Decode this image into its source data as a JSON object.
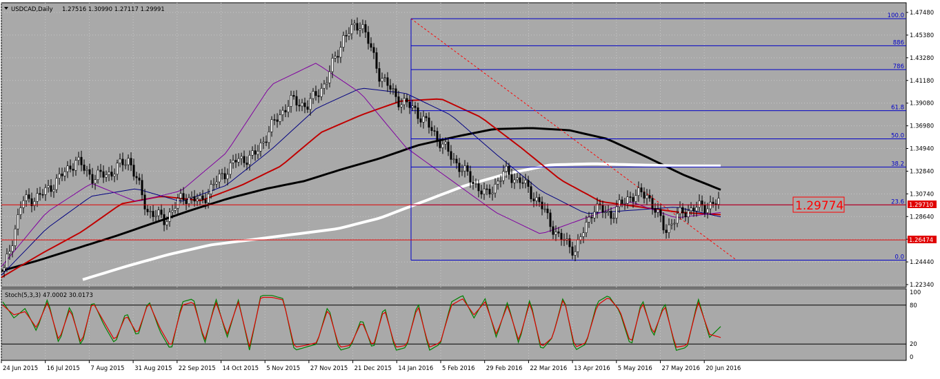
{
  "window": {
    "symbol_header": "USDCAD,Daily",
    "ohlc": "1.27516 1.30990 1.27117 1.29991"
  },
  "indicator_header": "Stoch(5,3,3) 47.0002 30.0173",
  "price_labels": {
    "big": "1.29774",
    "red_a": "1.29710",
    "red_b": "1.26474"
  },
  "chart_data": [
    {
      "type": "line",
      "title": "",
      "ylim": [
        1.2234,
        1.4748
      ],
      "grid": true,
      "y_ticks": [
        "1.47480",
        "1.45380",
        "1.43280",
        "1.41180",
        "1.39080",
        "1.36980",
        "1.34940",
        "1.32840",
        "1.30740",
        "1.28640",
        "1.26540",
        "1.24440",
        "1.22340"
      ],
      "x_ticks": [
        "24 Jun 2015",
        "16 Jul 2015",
        "7 Aug 2015",
        "31 Aug 2015",
        "22 Sep 2015",
        "14 Oct 2015",
        "5 Nov 2015",
        "27 Nov 2015",
        "21 Dec 2015",
        "14 Jan 2016",
        "5 Feb 2016",
        "29 Feb 2016",
        "22 Mar 2016",
        "13 Apr 2016",
        "5 May 2016",
        "27 May 2016",
        "20 Jun 2016"
      ],
      "candle_anchor_closes": [
        1.236,
        1.3,
        1.305,
        1.32,
        1.338,
        1.322,
        1.327,
        1.34,
        1.292,
        1.283,
        1.305,
        1.3,
        1.321,
        1.338,
        1.342,
        1.37,
        1.393,
        1.389,
        1.41,
        1.452,
        1.466,
        1.418,
        1.395,
        1.385,
        1.365,
        1.342,
        1.323,
        1.305,
        1.327,
        1.318,
        1.298,
        1.268,
        1.255,
        1.295,
        1.288,
        1.305,
        1.307,
        1.274,
        1.291,
        1.295,
        1.299
      ],
      "fibonacci": {
        "high": 1.469,
        "low": 1.246,
        "levels": [
          {
            "label": "100.0",
            "value": 1.469
          },
          {
            "label": "886",
            "value": 1.444
          },
          {
            "label": "786",
            "value": 1.422
          },
          {
            "label": "61.8",
            "value": 1.384
          },
          {
            "label": "50.0",
            "value": 1.358
          },
          {
            "label": "38.2",
            "value": 1.332
          },
          {
            "label": "23.6",
            "value": 1.297
          },
          {
            "label": "0.0",
            "value": 1.246
          }
        ]
      },
      "horizontal_lines": [
        {
          "value": 1.2971,
          "color": "#e00000"
        },
        {
          "value": 1.2647,
          "color": "#e00000"
        }
      ],
      "moving_averages": [
        {
          "color": "#000000",
          "values": [
            1.236,
            1.246,
            1.257,
            1.268,
            1.28,
            1.292,
            1.303,
            1.312,
            1.319,
            1.33,
            1.34,
            1.352,
            1.36,
            1.367,
            1.368,
            1.366,
            1.358,
            1.342,
            1.325,
            1.311
          ]
        },
        {
          "color": "#ffffff",
          "values": [
            1.228,
            1.24,
            1.251,
            1.26,
            1.265,
            1.27,
            1.275,
            1.285,
            1.3,
            1.315,
            1.326,
            1.334,
            1.335,
            1.334,
            1.333,
            1.333
          ]
        },
        {
          "color": "#c00000",
          "values": [
            1.23,
            1.252,
            1.272,
            1.298,
            1.305,
            1.301,
            1.315,
            1.333,
            1.364,
            1.38,
            1.393,
            1.395,
            1.378,
            1.35,
            1.32,
            1.3,
            1.295,
            1.29,
            1.288
          ]
        },
        {
          "color": "#000080",
          "values": [
            1.232,
            1.275,
            1.305,
            1.312,
            1.3,
            1.315,
            1.348,
            1.386,
            1.405,
            1.4,
            1.38,
            1.344,
            1.31,
            1.289,
            1.292,
            1.295,
            1.286
          ]
        },
        {
          "color": "#8000a0",
          "values": [
            1.24,
            1.29,
            1.317,
            1.3,
            1.31,
            1.345,
            1.408,
            1.428,
            1.4,
            1.35,
            1.32,
            1.29,
            1.27,
            1.285,
            1.3,
            1.285,
            1.29
          ]
        }
      ]
    },
    {
      "type": "line",
      "title": "",
      "ylim": [
        0,
        100
      ],
      "levels": [
        80,
        20
      ],
      "y_ticks": [
        "100",
        "80",
        "20",
        "0"
      ],
      "series": [
        {
          "color": "#008000",
          "values": [
            85,
            60,
            75,
            40,
            90,
            20,
            80,
            15,
            88,
            50,
            20,
            70,
            30,
            88,
            40,
            10,
            85,
            90,
            20,
            90,
            30,
            88,
            10,
            95,
            95,
            90,
            10,
            15,
            20,
            80,
            10,
            15,
            60,
            10,
            80,
            10,
            15,
            85,
            10,
            20,
            85,
            95,
            60,
            90,
            30,
            85,
            20,
            90,
            10,
            30,
            95,
            10,
            20,
            85,
            95,
            70,
            15,
            90,
            30,
            85,
            10,
            15,
            90,
            30,
            47
          ]
        },
        {
          "color": "#e00000",
          "values": [
            80,
            65,
            70,
            45,
            85,
            25,
            75,
            20,
            85,
            55,
            25,
            65,
            35,
            85,
            45,
            15,
            80,
            85,
            25,
            85,
            35,
            85,
            15,
            92,
            92,
            88,
            15,
            18,
            22,
            75,
            15,
            18,
            55,
            15,
            75,
            15,
            18,
            80,
            15,
            22,
            80,
            90,
            65,
            85,
            35,
            80,
            25,
            85,
            15,
            30,
            92,
            15,
            22,
            80,
            92,
            72,
            20,
            85,
            35,
            80,
            15,
            18,
            85,
            35,
            30
          ]
        }
      ]
    }
  ]
}
